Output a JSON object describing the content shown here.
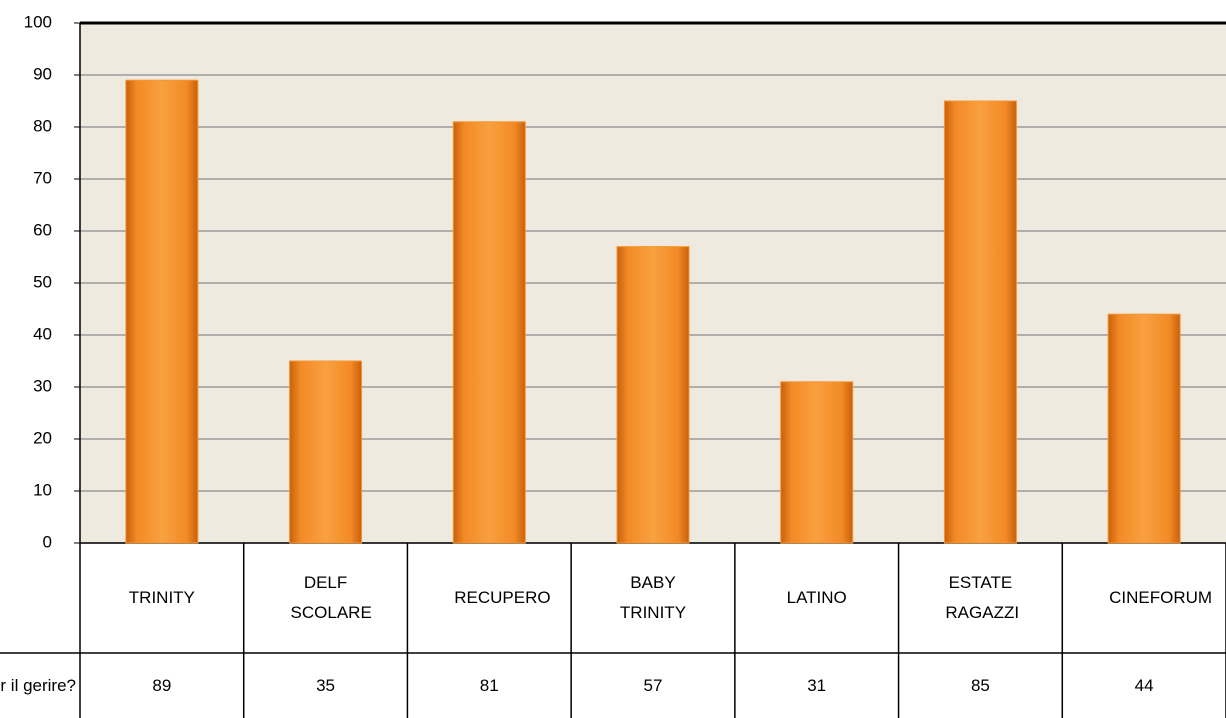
{
  "chart_data": {
    "type": "bar",
    "categories": [
      "TRINITY",
      "DELF SCOLARE",
      "RECUPERO",
      "BABY TRINITY",
      "LATINO",
      "ESTATE RAGAZZI",
      "CINEFORUM"
    ],
    "series": [
      {
        "name": "per il gerire?",
        "color": "#f7962f",
        "values": [
          89,
          35,
          81,
          57,
          31,
          85,
          44
        ]
      }
    ],
    "ylim": [
      0,
      100
    ],
    "yticks": [
      0,
      10,
      20,
      30,
      40,
      50,
      60,
      70,
      80,
      90,
      100
    ],
    "grid": true
  }
}
